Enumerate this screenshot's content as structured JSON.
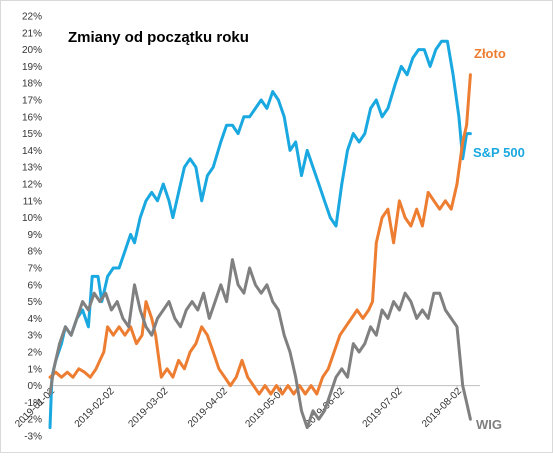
{
  "chart_data": {
    "type": "line",
    "title": "Zmiany od początku roku",
    "yticks": [
      "22%",
      "21%",
      "20%",
      "19%",
      "18%",
      "17%",
      "16%",
      "15%",
      "14%",
      "13%",
      "12%",
      "11%",
      "10%",
      "9%",
      "8%",
      "7%",
      "6%",
      "5%",
      "4%",
      "3%",
      "2%",
      "1%",
      "0%",
      "-1%",
      "-2%",
      "-3%"
    ],
    "ylim": [
      -3,
      22
    ],
    "xticks": [
      "2019-01-02",
      "2019-02-02",
      "2019-03-02",
      "2019-04-02",
      "2019-05-02",
      "2019-06-02",
      "2019-07-02",
      "2019-08-02"
    ],
    "xlim": [
      "2019-01-02",
      "2019-08-14"
    ],
    "grid": false,
    "series": [
      {
        "name": "S&P 500",
        "color": "#1aa8e0",
        "points": [
          [
            "2019-01-02",
            -2.5
          ],
          [
            "2019-01-03",
            0.5
          ],
          [
            "2019-01-05",
            1.5
          ],
          [
            "2019-01-08",
            2.5
          ],
          [
            "2019-01-10",
            3.5
          ],
          [
            "2019-01-13",
            3.0
          ],
          [
            "2019-01-16",
            4.0
          ],
          [
            "2019-01-19",
            4.5
          ],
          [
            "2019-01-22",
            3.5
          ],
          [
            "2019-01-24",
            6.5
          ],
          [
            "2019-01-27",
            6.5
          ],
          [
            "2019-01-29",
            5.0
          ],
          [
            "2019-02-01",
            6.5
          ],
          [
            "2019-02-04",
            7.0
          ],
          [
            "2019-02-07",
            7.0
          ],
          [
            "2019-02-10",
            8.0
          ],
          [
            "2019-02-13",
            9.0
          ],
          [
            "2019-02-15",
            8.5
          ],
          [
            "2019-02-18",
            10.0
          ],
          [
            "2019-02-21",
            11.0
          ],
          [
            "2019-02-24",
            11.5
          ],
          [
            "2019-02-27",
            11.0
          ],
          [
            "2019-03-02",
            12.0
          ],
          [
            "2019-03-05",
            11.0
          ],
          [
            "2019-03-07",
            10.0
          ],
          [
            "2019-03-10",
            11.5
          ],
          [
            "2019-03-13",
            13.0
          ],
          [
            "2019-03-16",
            13.5
          ],
          [
            "2019-03-19",
            13.0
          ],
          [
            "2019-03-22",
            11.0
          ],
          [
            "2019-03-25",
            12.5
          ],
          [
            "2019-03-28",
            13.0
          ],
          [
            "2019-04-01",
            14.5
          ],
          [
            "2019-04-04",
            15.5
          ],
          [
            "2019-04-07",
            15.5
          ],
          [
            "2019-04-10",
            15.0
          ],
          [
            "2019-04-13",
            16.0
          ],
          [
            "2019-04-16",
            16.0
          ],
          [
            "2019-04-19",
            16.5
          ],
          [
            "2019-04-22",
            17.0
          ],
          [
            "2019-04-25",
            16.5
          ],
          [
            "2019-04-28",
            17.5
          ],
          [
            "2019-05-01",
            17.0
          ],
          [
            "2019-05-04",
            16.0
          ],
          [
            "2019-05-07",
            14.0
          ],
          [
            "2019-05-10",
            14.5
          ],
          [
            "2019-05-13",
            12.5
          ],
          [
            "2019-05-16",
            14.0
          ],
          [
            "2019-05-19",
            13.0
          ],
          [
            "2019-05-22",
            12.0
          ],
          [
            "2019-05-25",
            11.0
          ],
          [
            "2019-05-28",
            10.0
          ],
          [
            "2019-05-31",
            9.5
          ],
          [
            "2019-06-03",
            12.0
          ],
          [
            "2019-06-06",
            14.0
          ],
          [
            "2019-06-09",
            15.0
          ],
          [
            "2019-06-12",
            14.5
          ],
          [
            "2019-06-15",
            15.0
          ],
          [
            "2019-06-18",
            16.5
          ],
          [
            "2019-06-21",
            17.0
          ],
          [
            "2019-06-24",
            16.0
          ],
          [
            "2019-06-27",
            16.5
          ],
          [
            "2019-07-01",
            18.0
          ],
          [
            "2019-07-04",
            19.0
          ],
          [
            "2019-07-07",
            18.5
          ],
          [
            "2019-07-10",
            19.5
          ],
          [
            "2019-07-13",
            20.0
          ],
          [
            "2019-07-16",
            20.0
          ],
          [
            "2019-07-19",
            19.0
          ],
          [
            "2019-07-22",
            20.0
          ],
          [
            "2019-07-25",
            20.5
          ],
          [
            "2019-07-28",
            20.5
          ],
          [
            "2019-07-31",
            18.5
          ],
          [
            "2019-08-03",
            16.0
          ],
          [
            "2019-08-05",
            13.5
          ],
          [
            "2019-08-07",
            15.0
          ],
          [
            "2019-08-09",
            15.0
          ]
        ]
      },
      {
        "name": "Złoto",
        "color": "#ed7d31",
        "points": [
          [
            "2019-01-02",
            0.5
          ],
          [
            "2019-01-05",
            0.8
          ],
          [
            "2019-01-08",
            0.5
          ],
          [
            "2019-01-11",
            0.8
          ],
          [
            "2019-01-14",
            0.5
          ],
          [
            "2019-01-17",
            1.0
          ],
          [
            "2019-01-20",
            0.8
          ],
          [
            "2019-01-23",
            0.5
          ],
          [
            "2019-01-26",
            1.0
          ],
          [
            "2019-01-28",
            1.5
          ],
          [
            "2019-01-30",
            2.0
          ],
          [
            "2019-02-01",
            3.5
          ],
          [
            "2019-02-04",
            3.0
          ],
          [
            "2019-02-07",
            3.5
          ],
          [
            "2019-02-10",
            3.0
          ],
          [
            "2019-02-13",
            3.5
          ],
          [
            "2019-02-16",
            2.5
          ],
          [
            "2019-02-19",
            3.0
          ],
          [
            "2019-02-21",
            5.0
          ],
          [
            "2019-02-24",
            4.0
          ],
          [
            "2019-02-26",
            3.0
          ],
          [
            "2019-03-01",
            0.5
          ],
          [
            "2019-03-04",
            1.0
          ],
          [
            "2019-03-07",
            0.5
          ],
          [
            "2019-03-10",
            1.5
          ],
          [
            "2019-03-13",
            1.0
          ],
          [
            "2019-03-16",
            2.0
          ],
          [
            "2019-03-19",
            2.5
          ],
          [
            "2019-03-22",
            3.5
          ],
          [
            "2019-03-25",
            3.0
          ],
          [
            "2019-03-28",
            2.0
          ],
          [
            "2019-03-31",
            1.0
          ],
          [
            "2019-04-03",
            0.5
          ],
          [
            "2019-04-06",
            0.0
          ],
          [
            "2019-04-09",
            0.5
          ],
          [
            "2019-04-12",
            1.5
          ],
          [
            "2019-04-15",
            0.5
          ],
          [
            "2019-04-18",
            0.0
          ],
          [
            "2019-04-21",
            -0.5
          ],
          [
            "2019-04-24",
            0.0
          ],
          [
            "2019-04-27",
            -0.5
          ],
          [
            "2019-04-30",
            0.0
          ],
          [
            "2019-05-03",
            -0.5
          ],
          [
            "2019-05-06",
            0.0
          ],
          [
            "2019-05-09",
            -0.5
          ],
          [
            "2019-05-12",
            0.0
          ],
          [
            "2019-05-15",
            -0.5
          ],
          [
            "2019-05-18",
            0.0
          ],
          [
            "2019-05-21",
            -0.5
          ],
          [
            "2019-05-24",
            0.5
          ],
          [
            "2019-05-27",
            1.0
          ],
          [
            "2019-05-30",
            2.0
          ],
          [
            "2019-06-02",
            3.0
          ],
          [
            "2019-06-05",
            3.5
          ],
          [
            "2019-06-08",
            4.0
          ],
          [
            "2019-06-11",
            4.5
          ],
          [
            "2019-06-14",
            4.0
          ],
          [
            "2019-06-17",
            4.5
          ],
          [
            "2019-06-19",
            5.0
          ],
          [
            "2019-06-21",
            8.5
          ],
          [
            "2019-06-24",
            10.0
          ],
          [
            "2019-06-27",
            10.5
          ],
          [
            "2019-06-30",
            8.5
          ],
          [
            "2019-07-03",
            11.0
          ],
          [
            "2019-07-06",
            10.0
          ],
          [
            "2019-07-09",
            9.5
          ],
          [
            "2019-07-12",
            10.5
          ],
          [
            "2019-07-15",
            9.5
          ],
          [
            "2019-07-18",
            11.5
          ],
          [
            "2019-07-21",
            11.0
          ],
          [
            "2019-07-24",
            10.5
          ],
          [
            "2019-07-27",
            11.0
          ],
          [
            "2019-07-30",
            10.5
          ],
          [
            "2019-08-02",
            12.0
          ],
          [
            "2019-08-05",
            14.5
          ],
          [
            "2019-08-07",
            15.5
          ],
          [
            "2019-08-09",
            18.5
          ]
        ]
      },
      {
        "name": "WIG",
        "color": "#808080",
        "points": [
          [
            "2019-01-02",
            -0.5
          ],
          [
            "2019-01-04",
            1.0
          ],
          [
            "2019-01-07",
            2.5
          ],
          [
            "2019-01-10",
            3.5
          ],
          [
            "2019-01-13",
            3.0
          ],
          [
            "2019-01-16",
            4.0
          ],
          [
            "2019-01-19",
            5.0
          ],
          [
            "2019-01-22",
            4.5
          ],
          [
            "2019-01-25",
            5.5
          ],
          [
            "2019-01-28",
            5.0
          ],
          [
            "2019-01-31",
            5.5
          ],
          [
            "2019-02-03",
            4.5
          ],
          [
            "2019-02-06",
            5.0
          ],
          [
            "2019-02-09",
            4.0
          ],
          [
            "2019-02-12",
            3.5
          ],
          [
            "2019-02-15",
            6.0
          ],
          [
            "2019-02-18",
            4.5
          ],
          [
            "2019-02-21",
            3.5
          ],
          [
            "2019-02-24",
            3.0
          ],
          [
            "2019-02-27",
            4.0
          ],
          [
            "2019-03-02",
            4.5
          ],
          [
            "2019-03-05",
            5.0
          ],
          [
            "2019-03-08",
            4.0
          ],
          [
            "2019-03-11",
            3.5
          ],
          [
            "2019-03-14",
            4.5
          ],
          [
            "2019-03-17",
            5.0
          ],
          [
            "2019-03-20",
            4.5
          ],
          [
            "2019-03-23",
            5.5
          ],
          [
            "2019-03-26",
            4.0
          ],
          [
            "2019-03-29",
            5.0
          ],
          [
            "2019-04-01",
            6.0
          ],
          [
            "2019-04-04",
            5.0
          ],
          [
            "2019-04-07",
            7.5
          ],
          [
            "2019-04-10",
            6.0
          ],
          [
            "2019-04-13",
            5.5
          ],
          [
            "2019-04-16",
            7.0
          ],
          [
            "2019-04-19",
            6.0
          ],
          [
            "2019-04-22",
            5.5
          ],
          [
            "2019-04-25",
            6.0
          ],
          [
            "2019-04-28",
            5.0
          ],
          [
            "2019-05-01",
            4.5
          ],
          [
            "2019-05-04",
            3.0
          ],
          [
            "2019-05-07",
            2.0
          ],
          [
            "2019-05-10",
            0.5
          ],
          [
            "2019-05-13",
            -1.5
          ],
          [
            "2019-05-16",
            -2.5
          ],
          [
            "2019-05-19",
            -1.5
          ],
          [
            "2019-05-22",
            -2.0
          ],
          [
            "2019-05-25",
            -1.5
          ],
          [
            "2019-05-28",
            -0.5
          ],
          [
            "2019-05-31",
            0.5
          ],
          [
            "2019-06-03",
            1.0
          ],
          [
            "2019-06-06",
            0.5
          ],
          [
            "2019-06-09",
            2.5
          ],
          [
            "2019-06-12",
            2.0
          ],
          [
            "2019-06-15",
            2.5
          ],
          [
            "2019-06-18",
            3.5
          ],
          [
            "2019-06-21",
            3.0
          ],
          [
            "2019-06-24",
            4.5
          ],
          [
            "2019-06-27",
            4.0
          ],
          [
            "2019-06-30",
            5.0
          ],
          [
            "2019-07-03",
            4.5
          ],
          [
            "2019-07-06",
            5.5
          ],
          [
            "2019-07-09",
            5.0
          ],
          [
            "2019-07-12",
            4.0
          ],
          [
            "2019-07-15",
            4.5
          ],
          [
            "2019-07-18",
            4.0
          ],
          [
            "2019-07-21",
            5.5
          ],
          [
            "2019-07-24",
            5.5
          ],
          [
            "2019-07-27",
            4.5
          ],
          [
            "2019-07-30",
            4.0
          ],
          [
            "2019-08-02",
            3.5
          ],
          [
            "2019-08-05",
            0.0
          ],
          [
            "2019-08-07",
            -1.0
          ],
          [
            "2019-08-09",
            -2.0
          ]
        ]
      }
    ]
  }
}
